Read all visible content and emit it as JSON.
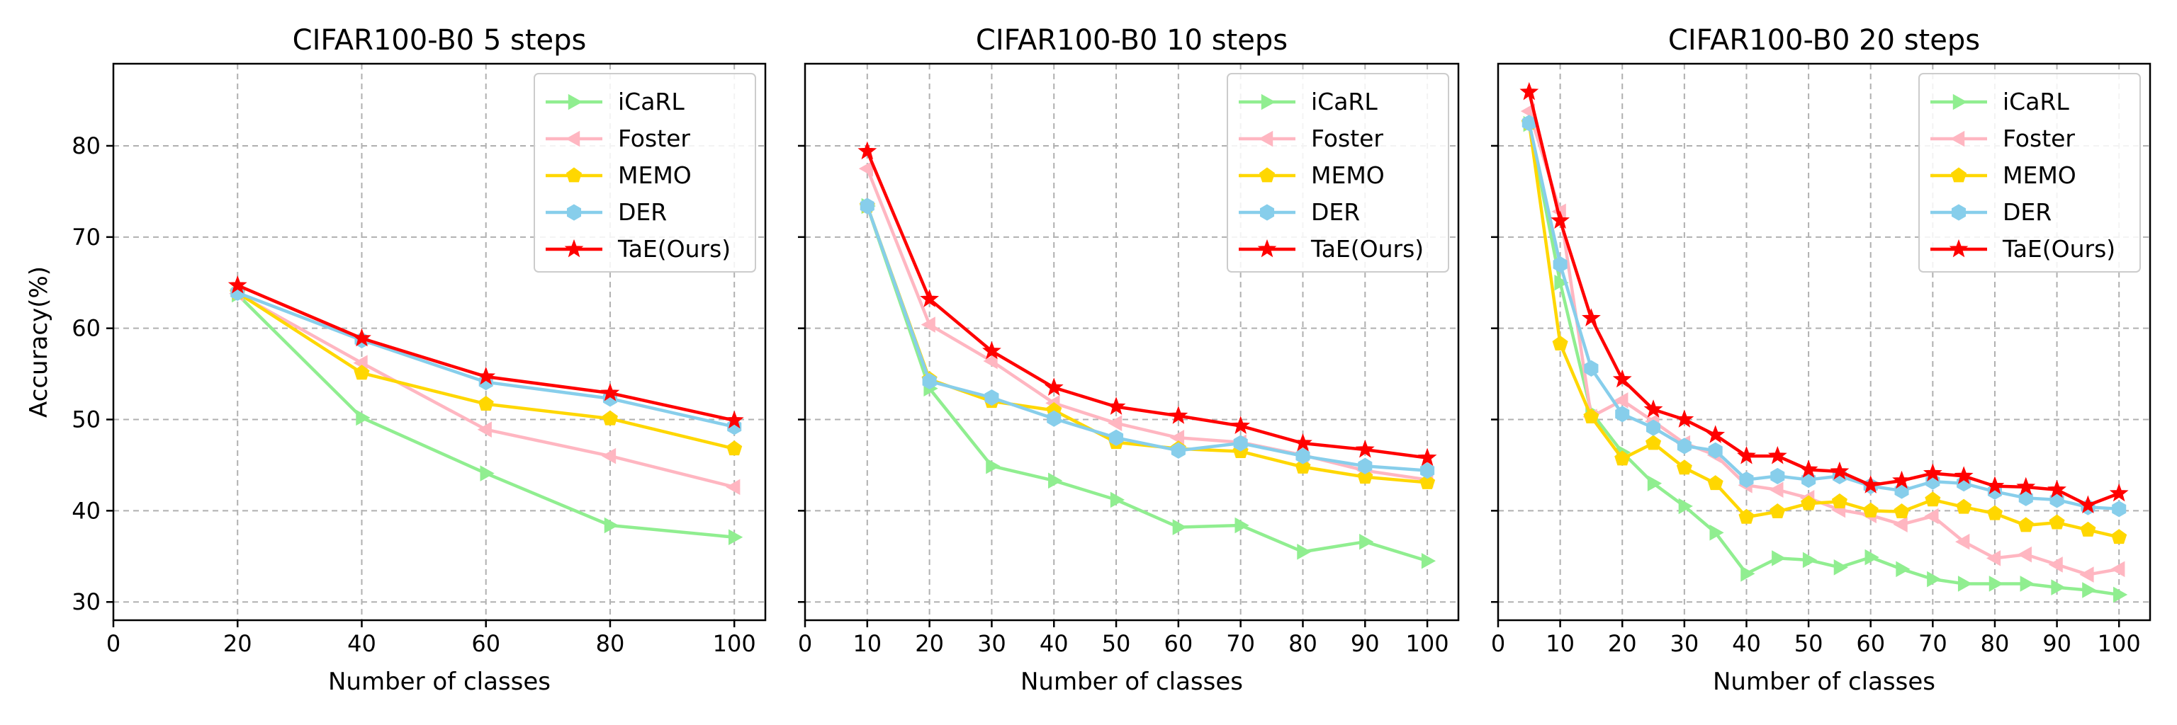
{
  "chart_data": [
    {
      "type": "line",
      "title": "CIFAR100-B0 5 steps",
      "xlabel": "Number of classes",
      "ylabel": "Accuracy(%)",
      "xlim": [
        0,
        105
      ],
      "ylim": [
        28,
        89
      ],
      "xticks": [
        0,
        20,
        40,
        60,
        80,
        100
      ],
      "yticks": [
        30,
        40,
        50,
        60,
        70,
        80
      ],
      "grid": true,
      "legend_position": "top-right",
      "x": [
        20,
        40,
        60,
        80,
        100
      ],
      "series": [
        {
          "name": "iCaRL",
          "color": "#90ee90",
          "marker": "triangle-right",
          "values": [
            63.7,
            50.2,
            44.1,
            38.4,
            37.1
          ]
        },
        {
          "name": "Foster",
          "color": "#ffb6c1",
          "marker": "triangle-left",
          "values": [
            63.8,
            56.2,
            48.9,
            46.0,
            42.6
          ]
        },
        {
          "name": "MEMO",
          "color": "#ffd700",
          "marker": "pentagon",
          "values": [
            63.9,
            55.1,
            51.7,
            50.1,
            46.8
          ]
        },
        {
          "name": "DER",
          "color": "#87ceeb",
          "marker": "hexagon",
          "values": [
            63.9,
            58.7,
            54.1,
            52.3,
            49.2
          ]
        },
        {
          "name": "TaE(Ours)",
          "color": "#ff0000",
          "marker": "star",
          "values": [
            64.7,
            58.9,
            54.7,
            52.9,
            49.9
          ]
        }
      ]
    },
    {
      "type": "line",
      "title": "CIFAR100-B0 10 steps",
      "xlabel": "Number of classes",
      "ylabel": "",
      "xlim": [
        0,
        105
      ],
      "ylim": [
        28,
        89
      ],
      "xticks": [
        0,
        10,
        20,
        30,
        40,
        50,
        60,
        70,
        80,
        90,
        100
      ],
      "yticks": [
        30,
        40,
        50,
        60,
        70,
        80
      ],
      "grid": true,
      "legend_position": "top-right",
      "x": [
        10,
        20,
        30,
        40,
        50,
        60,
        70,
        80,
        90,
        100
      ],
      "series": [
        {
          "name": "iCaRL",
          "color": "#90ee90",
          "marker": "triangle-right",
          "values": [
            73.4,
            53.4,
            44.9,
            43.3,
            41.2,
            38.2,
            38.4,
            35.5,
            36.6,
            34.5
          ]
        },
        {
          "name": "Foster",
          "color": "#ffb6c1",
          "marker": "triangle-left",
          "values": [
            77.5,
            60.4,
            56.4,
            51.8,
            49.6,
            48.0,
            47.5,
            46.1,
            44.4,
            43.4
          ]
        },
        {
          "name": "MEMO",
          "color": "#ffd700",
          "marker": "pentagon",
          "values": [
            73.4,
            54.4,
            52.0,
            51.0,
            47.5,
            46.8,
            46.5,
            44.8,
            43.7,
            43.1
          ]
        },
        {
          "name": "DER",
          "color": "#87ceeb",
          "marker": "hexagon",
          "values": [
            73.4,
            54.2,
            52.4,
            50.1,
            48.0,
            46.6,
            47.4,
            46.0,
            44.9,
            44.4
          ]
        },
        {
          "name": "TaE(Ours)",
          "color": "#ff0000",
          "marker": "star",
          "values": [
            79.4,
            63.2,
            57.5,
            53.5,
            51.4,
            50.4,
            49.3,
            47.4,
            46.7,
            45.8
          ]
        }
      ]
    },
    {
      "type": "line",
      "title": "CIFAR100-B0 20 steps",
      "xlabel": "Number of classes",
      "ylabel": "",
      "xlim": [
        0,
        105
      ],
      "ylim": [
        28,
        89
      ],
      "xticks": [
        0,
        10,
        20,
        30,
        40,
        50,
        60,
        70,
        80,
        90,
        100
      ],
      "yticks": [
        30,
        40,
        50,
        60,
        70,
        80
      ],
      "grid": true,
      "legend_position": "top-right",
      "x": [
        5,
        10,
        15,
        20,
        25,
        30,
        35,
        40,
        45,
        50,
        55,
        60,
        65,
        70,
        75,
        80,
        85,
        90,
        95,
        100
      ],
      "series": [
        {
          "name": "iCaRL",
          "color": "#90ee90",
          "marker": "triangle-right",
          "values": [
            82.4,
            65.0,
            50.8,
            46.4,
            43.0,
            40.5,
            37.6,
            33.1,
            34.8,
            34.6,
            33.8,
            34.9,
            33.6,
            32.5,
            32.0,
            32.0,
            32.0,
            31.6,
            31.3,
            30.8
          ]
        },
        {
          "name": "Foster",
          "color": "#ffb6c1",
          "marker": "triangle-left",
          "values": [
            83.8,
            72.8,
            50.3,
            52.1,
            49.8,
            47.4,
            46.1,
            42.8,
            42.3,
            41.4,
            40.1,
            39.5,
            38.5,
            39.4,
            36.6,
            34.8,
            35.2,
            34.1,
            33.0,
            33.6
          ]
        },
        {
          "name": "MEMO",
          "color": "#ffd700",
          "marker": "pentagon",
          "values": [
            82.5,
            58.3,
            50.3,
            45.7,
            47.4,
            44.7,
            43.0,
            39.3,
            39.9,
            40.8,
            41.0,
            40.0,
            39.9,
            41.2,
            40.4,
            39.7,
            38.4,
            38.7,
            37.9,
            37.1
          ]
        },
        {
          "name": "DER",
          "color": "#87ceeb",
          "marker": "hexagon",
          "values": [
            82.5,
            67.0,
            55.6,
            50.6,
            49.1,
            47.1,
            46.6,
            43.4,
            43.8,
            43.4,
            43.8,
            42.7,
            42.2,
            43.2,
            43.0,
            42.1,
            41.4,
            41.2,
            40.4,
            40.2
          ]
        },
        {
          "name": "TaE(Ours)",
          "color": "#ff0000",
          "marker": "star",
          "values": [
            85.9,
            71.8,
            61.1,
            54.4,
            51.1,
            50.0,
            48.3,
            46.0,
            46.0,
            44.5,
            44.3,
            42.8,
            43.3,
            44.1,
            43.8,
            42.7,
            42.6,
            42.3,
            40.6,
            41.9
          ]
        }
      ]
    }
  ]
}
